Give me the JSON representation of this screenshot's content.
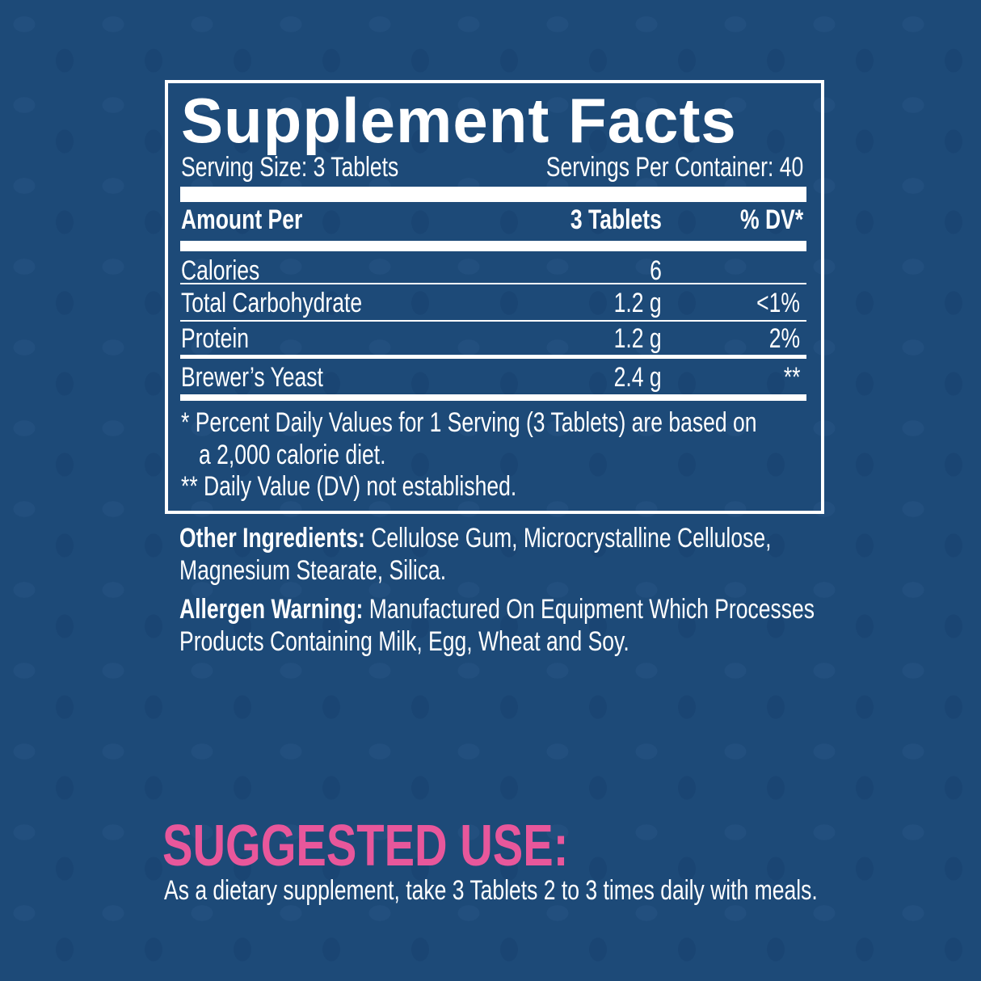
{
  "facts": {
    "title": "Supplement Facts",
    "serving_size": "Serving Size: 3 Tablets",
    "servings_per_container": "Servings Per Container: 40",
    "header": {
      "amount": "Amount Per",
      "per": "3 Tablets",
      "dv": "% DV*"
    },
    "rows": [
      {
        "name": "Calories",
        "amount": "6",
        "dv": ""
      },
      {
        "name": "Total Carbohydrate",
        "amount": "1.2 g",
        "dv": "<1%"
      },
      {
        "name": "Protein",
        "amount": "1.2 g",
        "dv": "2%"
      },
      {
        "name": "Brewer’s Yeast",
        "amount": "2.4 g",
        "dv": "**"
      }
    ],
    "footnote1a": "* Percent Daily Values for 1 Serving (3 Tablets) are based on",
    "footnote1b": "a 2,000 calorie diet.",
    "footnote2": "** Daily Value (DV) not established."
  },
  "other_ingredients": {
    "label": "Other Ingredients:",
    "line1": "Cellulose Gum, Microcrystalline Cellulose,",
    "line2": "Magnesium Stearate, Silica."
  },
  "allergen": {
    "label": "Allergen Warning:",
    "line1": "Manufactured On Equipment Which Processes",
    "line2": "Products Containing Milk, Egg, Wheat and Soy."
  },
  "suggested_use": {
    "heading": "SUGGESTED USE:",
    "text": "As a dietary supplement, take 3 Tablets 2 to 3 times daily with meals."
  },
  "colors": {
    "background": "#1d4a78",
    "accent": "#e8579b",
    "text": "#ffffff"
  }
}
